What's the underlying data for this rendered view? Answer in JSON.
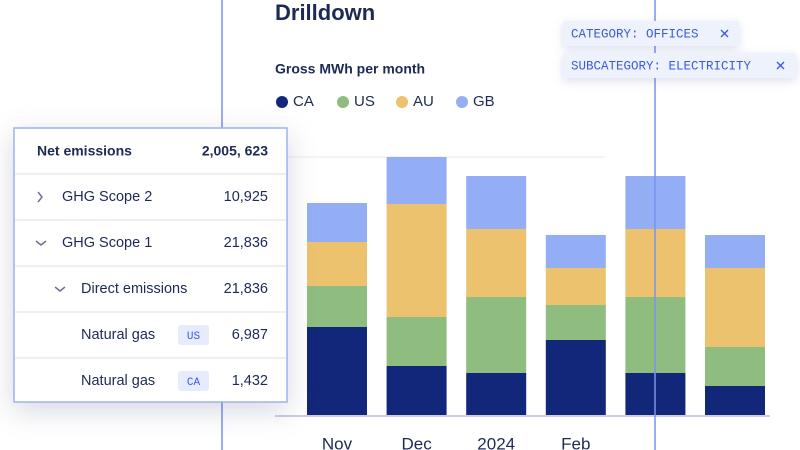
{
  "chart_data": {
    "type": "bar",
    "stacked": true,
    "title": "Drilldown",
    "subtitle": "Gross MWh per month",
    "categories": [
      "Nov",
      "Dec",
      "2024",
      "Feb",
      null,
      null
    ],
    "series": [
      {
        "name": "CA",
        "color": "#13277a",
        "values": [
          88,
          49,
          42,
          75,
          42,
          29
        ]
      },
      {
        "name": "US",
        "color": "#8fbc7f",
        "values": [
          41,
          49,
          76,
          35,
          76,
          39
        ]
      },
      {
        "name": "AU",
        "color": "#edc26f",
        "values": [
          44,
          113,
          68,
          37,
          68,
          79
        ]
      },
      {
        "name": "GB",
        "color": "#94aef6",
        "values": [
          39,
          47,
          53,
          33,
          53,
          33
        ]
      }
    ],
    "ylim": [
      0,
      258
    ]
  },
  "filters": [
    "CATEGORY: OFFICES",
    "SUBCATEGORY: ELECTRICITY"
  ],
  "table": {
    "header": {
      "label": "Net emissions",
      "value": "2,005, 623"
    },
    "rows": [
      {
        "label": "GHG Scope 2",
        "value": "10,925"
      },
      {
        "label": "GHG Scope 1",
        "value": "21,836"
      },
      {
        "label": "Direct emissions",
        "value": "21,836"
      },
      {
        "label": "Natural gas",
        "tag": "US",
        "value": "6,987"
      },
      {
        "label": "Natural gas",
        "tag": "CA",
        "value": "1,432"
      }
    ]
  }
}
